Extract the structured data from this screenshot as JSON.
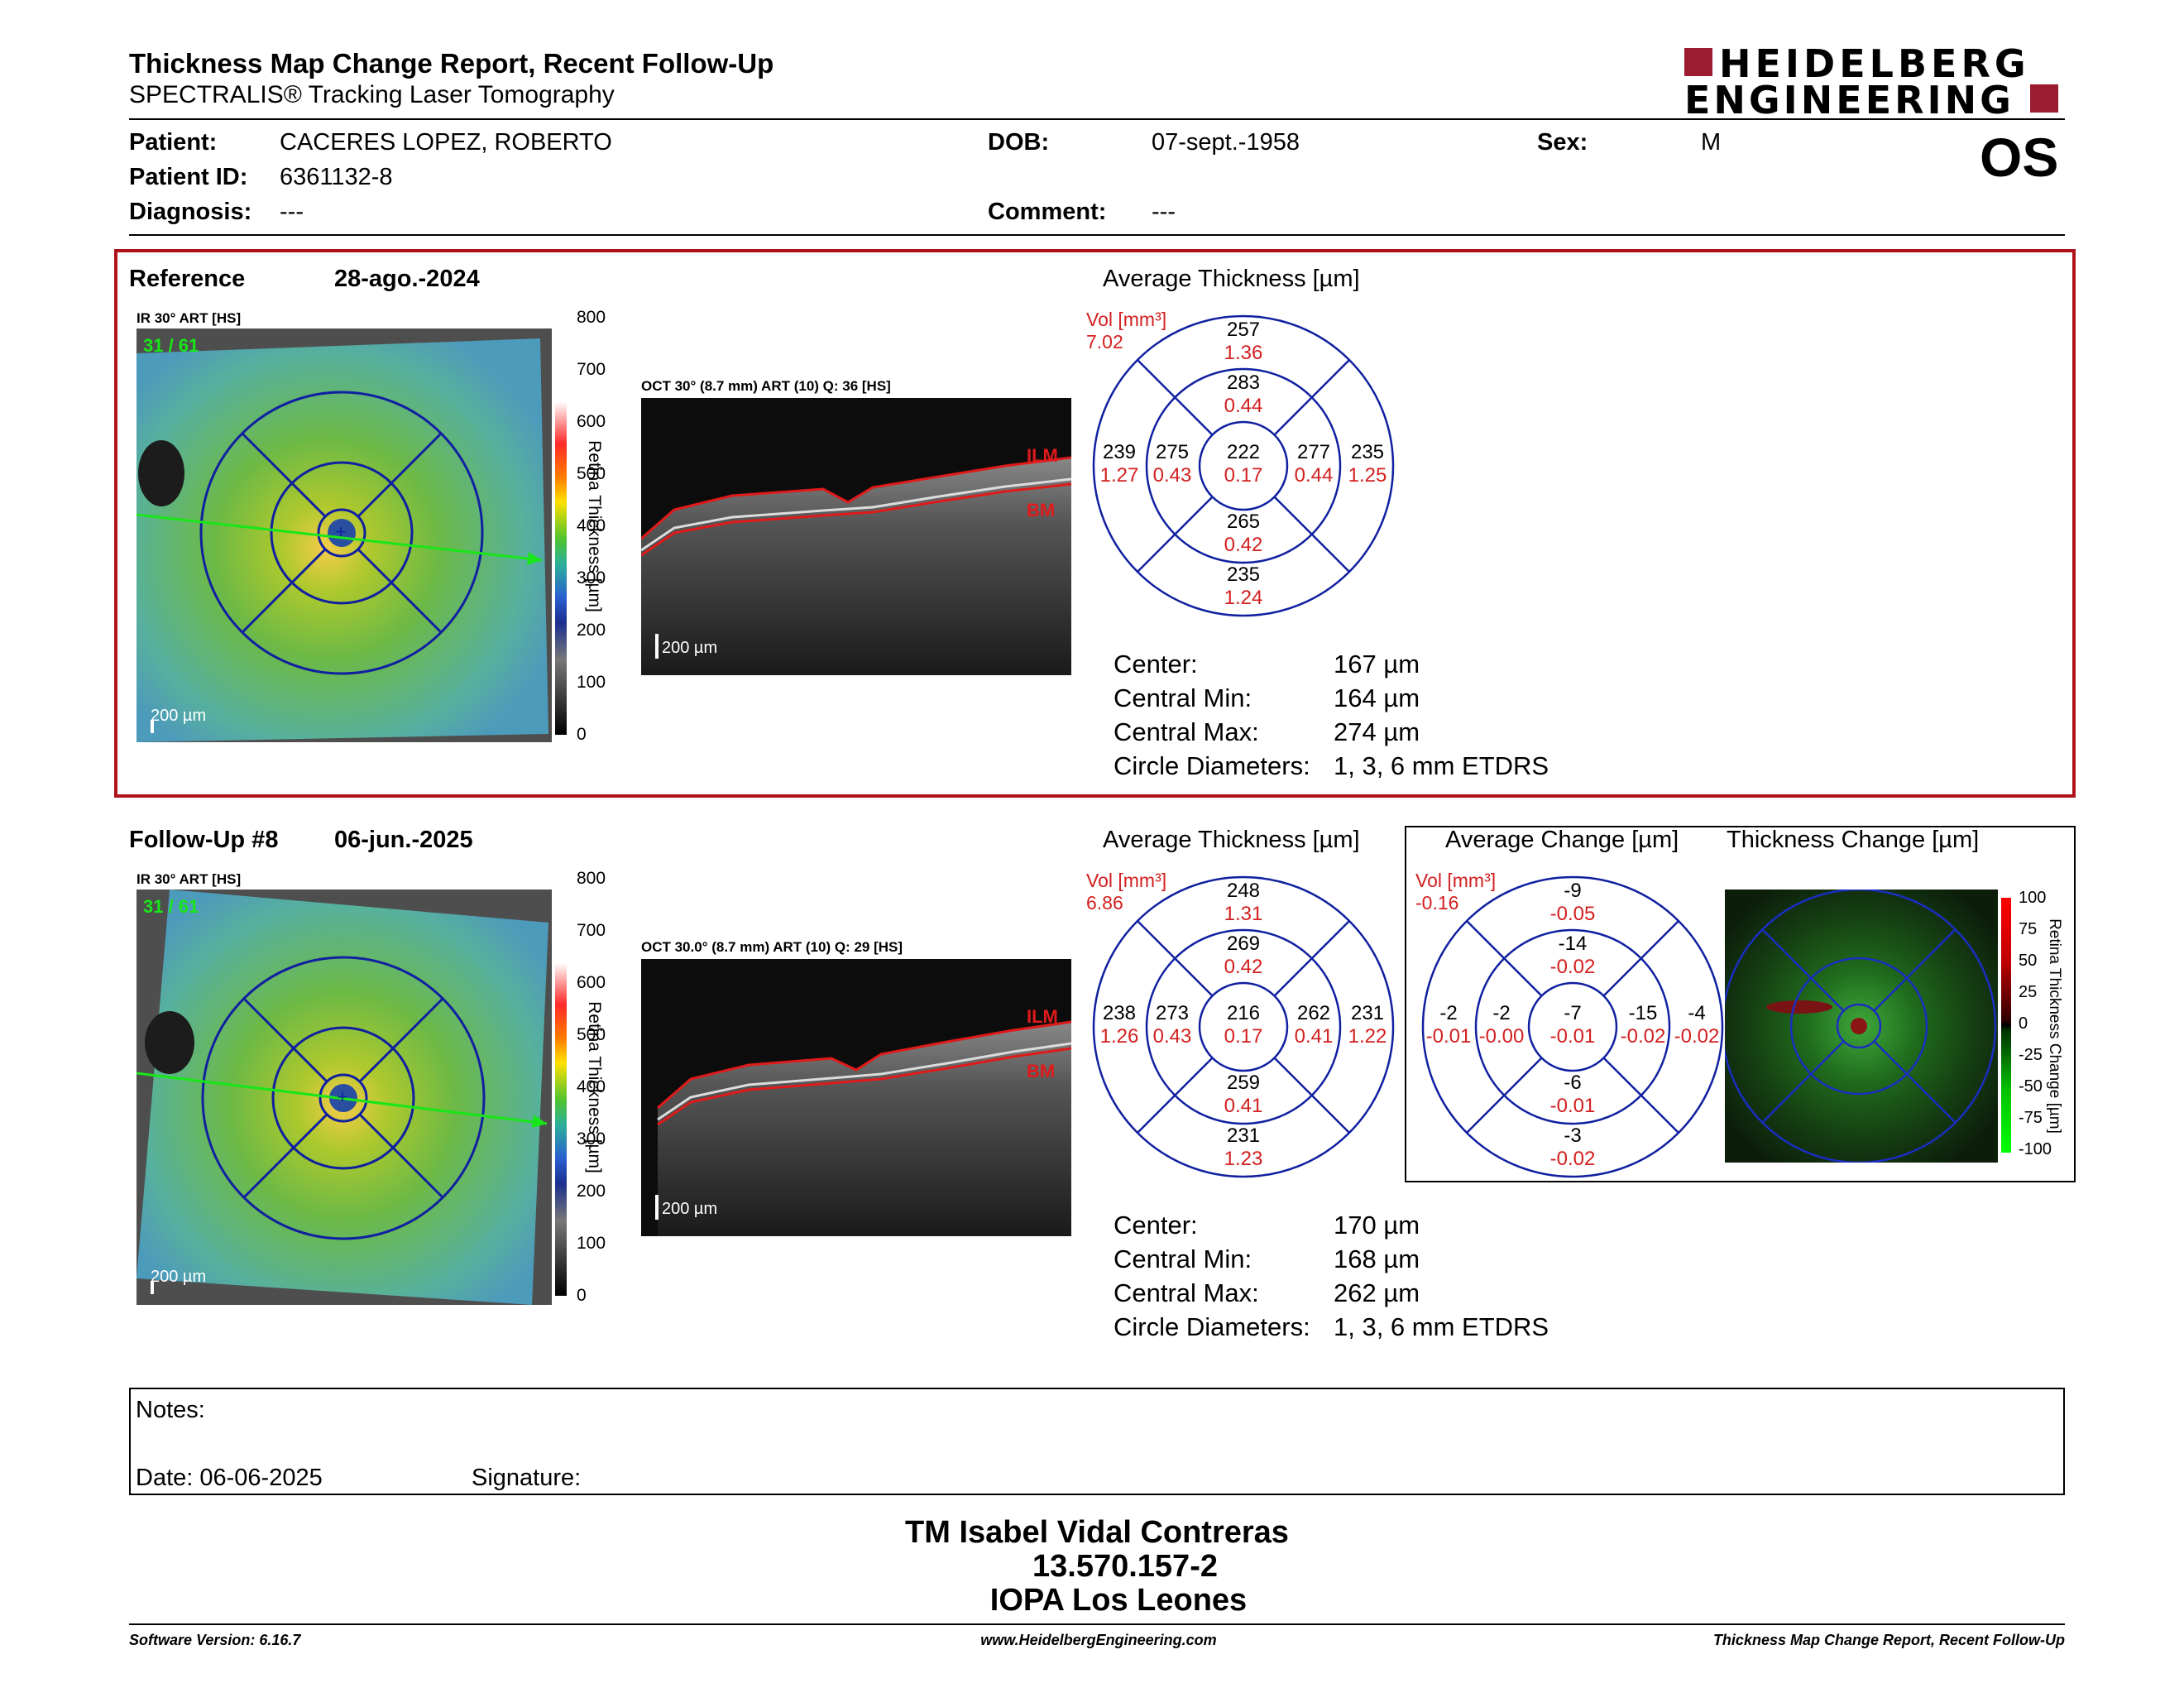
{
  "header": {
    "title": "Thickness Map Change Report, Recent Follow-Up",
    "subtitle": "SPECTRALIS® Tracking Laser Tomography",
    "brand_line1": "HEIDELBERG",
    "brand_line2": "ENGINEERING",
    "brand_color": "#9b1b30",
    "eye": "OS"
  },
  "patient": {
    "name_label": "Patient:",
    "name": "CACERES LOPEZ, ROBERTO",
    "id_label": "Patient ID:",
    "id": "6361132-8",
    "diagnosis_label": "Diagnosis:",
    "diagnosis": "---",
    "dob_label": "DOB:",
    "dob": "07-sept.-1958",
    "comment_label": "Comment:",
    "comment": "---",
    "sex_label": "Sex:",
    "sex": "M"
  },
  "reference": {
    "label": "Reference",
    "date": "28-ago.-2024",
    "ir_label": "IR 30° ART [HS]",
    "ir_counter": "31 / 61",
    "scale": "200 µm",
    "oct_label": "OCT 30° (8.7 mm) ART (10) Q: 36 [HS]",
    "oct_scale": "200 µm",
    "ilm": "ILM",
    "bm": "BM",
    "avg_title": "Average Thickness [µm]",
    "vol_label": "Vol [mm³]",
    "vol": "7.02",
    "etdrs": {
      "s_outer": "257",
      "s_outer_v": "1.36",
      "s_inner": "283",
      "s_inner_v": "0.44",
      "center": "222",
      "center_v": "0.17",
      "t_outer": "239",
      "t_outer_v": "1.27",
      "t_inner": "275",
      "t_inner_v": "0.43",
      "n_inner": "277",
      "n_inner_v": "0.44",
      "n_outer": "235",
      "n_outer_v": "1.25",
      "i_inner": "265",
      "i_inner_v": "0.42",
      "i_outer": "235",
      "i_outer_v": "1.24"
    },
    "stats": {
      "center_label": "Center:",
      "center": "167 µm",
      "min_label": "Central Min:",
      "min": "164 µm",
      "max_label": "Central Max:",
      "max": "274 µm",
      "diam_label": "Circle Diameters:",
      "diam": "1, 3, 6 mm ETDRS"
    }
  },
  "followup": {
    "label": "Follow-Up #8",
    "date": "06-jun.-2025",
    "ir_label": "IR 30° ART [HS]",
    "ir_counter": "31 / 61",
    "scale": "200 µm",
    "oct_label": "OCT 30.0° (8.7 mm) ART (10) Q: 29 [HS]",
    "oct_scale": "200 µm",
    "ilm": "ILM",
    "bm": "BM",
    "avg_title": "Average Thickness [µm]",
    "vol_label": "Vol [mm³]",
    "vol": "6.86",
    "etdrs": {
      "s_outer": "248",
      "s_outer_v": "1.31",
      "s_inner": "269",
      "s_inner_v": "0.42",
      "center": "216",
      "center_v": "0.17",
      "t_outer": "238",
      "t_outer_v": "1.26",
      "t_inner": "273",
      "t_inner_v": "0.43",
      "n_inner": "262",
      "n_inner_v": "0.41",
      "n_outer": "231",
      "n_outer_v": "1.22",
      "i_inner": "259",
      "i_inner_v": "0.41",
      "i_outer": "231",
      "i_outer_v": "1.23"
    },
    "stats": {
      "center_label": "Center:",
      "center": "170 µm",
      "min_label": "Central Min:",
      "min": "168 µm",
      "max_label": "Central Max:",
      "max": "262 µm",
      "diam_label": "Circle Diameters:",
      "diam": "1, 3, 6 mm ETDRS"
    }
  },
  "change": {
    "avg_title": "Average Change [µm]",
    "map_title": "Thickness Change [µm]",
    "vol_label": "Vol [mm³]",
    "vol": "-0.16",
    "etdrs": {
      "s_outer": "-9",
      "s_outer_v": "-0.05",
      "s_inner": "-14",
      "s_inner_v": "-0.02",
      "center": "-7",
      "center_v": "-0.01",
      "t_outer": "-2",
      "t_outer_v": "-0.01",
      "t_inner": "-2",
      "t_inner_v": "-0.00",
      "n_inner": "-15",
      "n_inner_v": "-0.02",
      "n_outer": "-4",
      "n_outer_v": "-0.02",
      "i_inner": "-6",
      "i_inner_v": "-0.01",
      "i_outer": "-3",
      "i_outer_v": "-0.02"
    },
    "scale_ticks": [
      "100",
      "75",
      "50",
      "25",
      "0",
      "-25",
      "-50",
      "-75",
      "-100"
    ],
    "scale_title": "Retina Thickness Change [µm]"
  },
  "thickness_scale": {
    "ticks": [
      "800",
      "700",
      "600",
      "500",
      "400",
      "300",
      "200",
      "100",
      "0"
    ],
    "title": "Retina Thickness [µm]"
  },
  "notes": {
    "label": "Notes:",
    "date_label": "Date: 06-06-2025",
    "signature_label": "Signature:"
  },
  "signer": {
    "name": "TM Isabel Vidal Contreras",
    "rut": "13.570.157-2",
    "org": "IOPA Los Leones"
  },
  "footer": {
    "version": "Software Version: 6.16.7",
    "website": "www.HeidelbergEngineering.com",
    "report": "Thickness Map Change Report, Recent Follow-Up"
  }
}
